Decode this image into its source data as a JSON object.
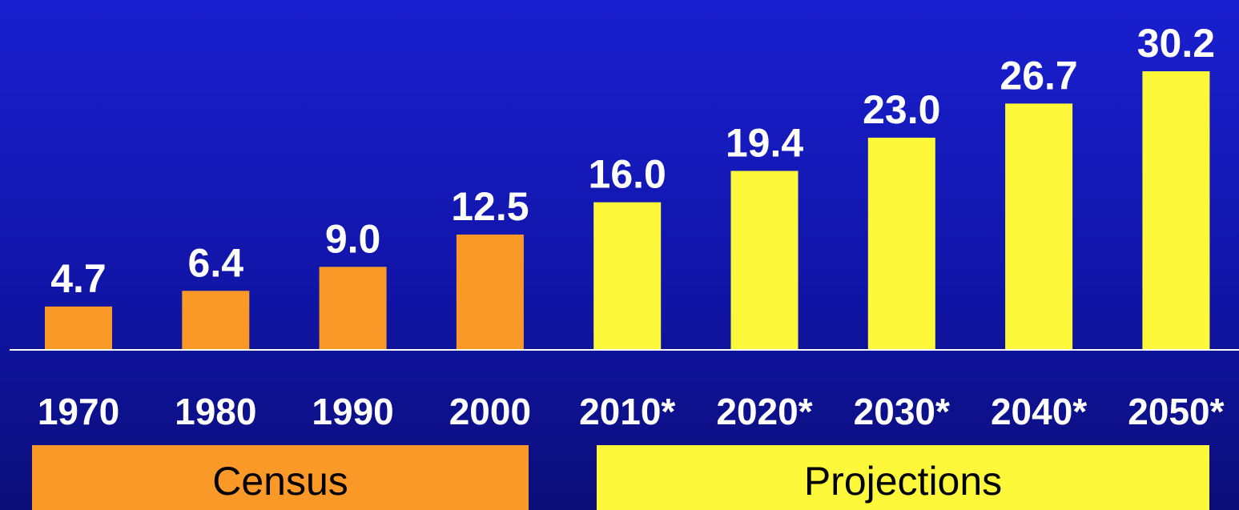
{
  "chart_data": {
    "type": "bar",
    "categories": [
      "1970",
      "1980",
      "1990",
      "2000",
      "2010*",
      "2020*",
      "2030*",
      "2040*",
      "2050*"
    ],
    "values": [
      4.7,
      6.4,
      9.0,
      12.5,
      16.0,
      19.4,
      23.0,
      26.7,
      30.2
    ],
    "value_labels": [
      "4.7",
      "6.4",
      "9.0",
      "12.5",
      "16.0",
      "19.4",
      "23.0",
      "26.7",
      "30.2"
    ],
    "title": "",
    "xlabel": "",
    "ylabel": "",
    "ylim": [
      0,
      38
    ],
    "grid": false,
    "groups": [
      {
        "label": "Census",
        "categories": [
          "1970",
          "1980",
          "1990",
          "2000"
        ],
        "color": "#fa9828"
      },
      {
        "label": "Projections",
        "categories": [
          "2010*",
          "2020*",
          "2030*",
          "2040*",
          "2050*"
        ],
        "color": "#fdf93a"
      }
    ]
  },
  "colors": {
    "background": "#1115a8",
    "census": "#fa9828",
    "projections": "#fdf93a",
    "axis": "#ffffff",
    "labels": "#ffffff"
  }
}
